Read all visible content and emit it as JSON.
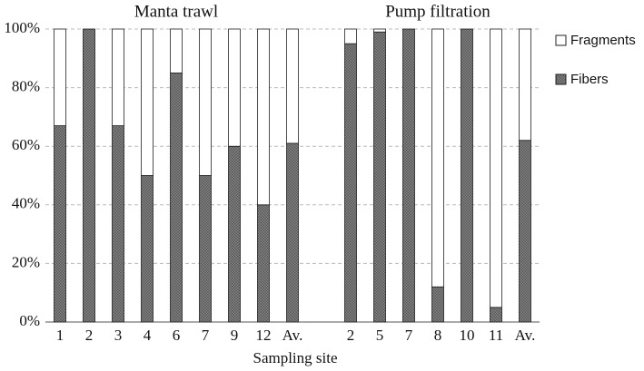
{
  "chart_data": {
    "type": "stacked_bar",
    "group_labels": [
      "Manta trawl",
      "Pump filtration"
    ],
    "x_label": "Sampling site",
    "categories": [
      "1",
      "2",
      "3",
      "4",
      "6",
      "7",
      "9",
      "12",
      "Av.",
      null,
      "2",
      "5",
      "7",
      "8",
      "10",
      "11",
      "Av."
    ],
    "series": [
      {
        "name": "Fibers",
        "color": "#858585",
        "values": [
          67,
          100,
          67,
          50,
          85,
          50,
          60,
          40,
          61,
          null,
          95,
          99,
          100,
          12,
          100,
          5,
          62
        ]
      },
      {
        "name": "Fragments",
        "color": "#ffffff",
        "values": [
          33,
          0,
          33,
          50,
          15,
          50,
          40,
          60,
          39,
          null,
          5,
          1,
          0,
          88,
          0,
          95,
          38
        ]
      }
    ],
    "ylim": [
      0,
      100
    ],
    "yticks": [
      {
        "value": 0,
        "label": "0%"
      },
      {
        "value": 20,
        "label": "20%"
      },
      {
        "value": 40,
        "label": "40%"
      },
      {
        "value": 60,
        "label": "60%"
      },
      {
        "value": 80,
        "label": "80%"
      },
      {
        "value": 100,
        "label": "100%"
      }
    ],
    "grid": true,
    "legend": "right"
  }
}
